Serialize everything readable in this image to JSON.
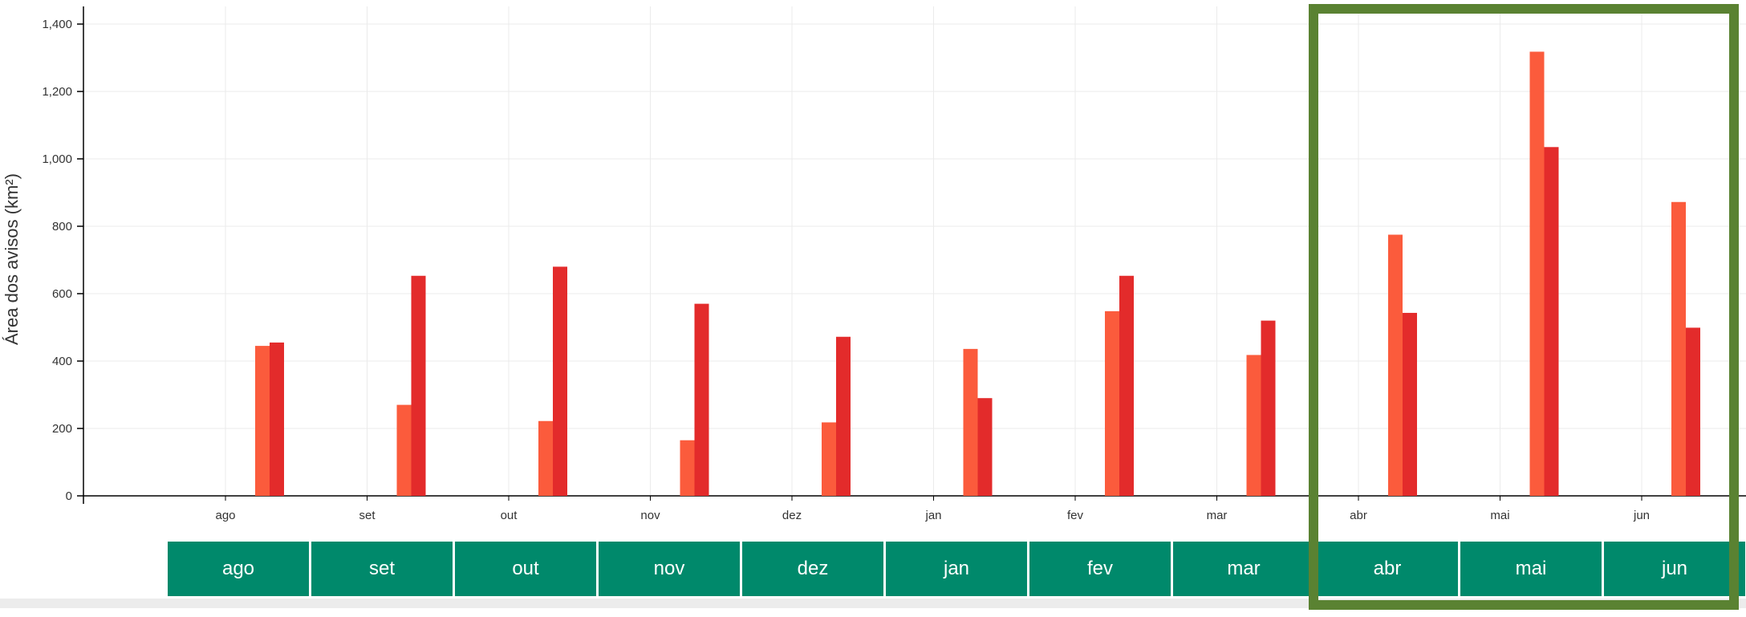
{
  "y_axis_label": "Área dos avisos (km²)",
  "month_buttons": [
    "ago",
    "set",
    "out",
    "nov",
    "dez",
    "jan",
    "fev",
    "mar",
    "abr",
    "mai",
    "jun"
  ],
  "colors": {
    "series_a": "#fb5b3c",
    "series_b": "#e32b2b",
    "button_bg": "#00896b",
    "highlight_border": "#5a8232"
  },
  "chart_data": {
    "type": "bar",
    "categories": [
      "ago",
      "set",
      "out",
      "nov",
      "dez",
      "jan",
      "fev",
      "mar",
      "abr",
      "mai",
      "jun"
    ],
    "series": [
      {
        "values": [
          445,
          270,
          222,
          165,
          218,
          436,
          548,
          418,
          775,
          1318,
          872
        ]
      },
      {
        "values": [
          455,
          653,
          680,
          570,
          472,
          290,
          653,
          520,
          543,
          1035,
          499
        ]
      }
    ],
    "yticks": [
      "0",
      "200",
      "400",
      "600",
      "800",
      "1,000",
      "1,200",
      "1,400"
    ],
    "ylim": [
      0,
      1400
    ],
    "xlabel": "",
    "ylabel": "Área dos avisos (km²)",
    "grid": true,
    "highlighted_categories": [
      "abr",
      "mai",
      "jun"
    ]
  }
}
